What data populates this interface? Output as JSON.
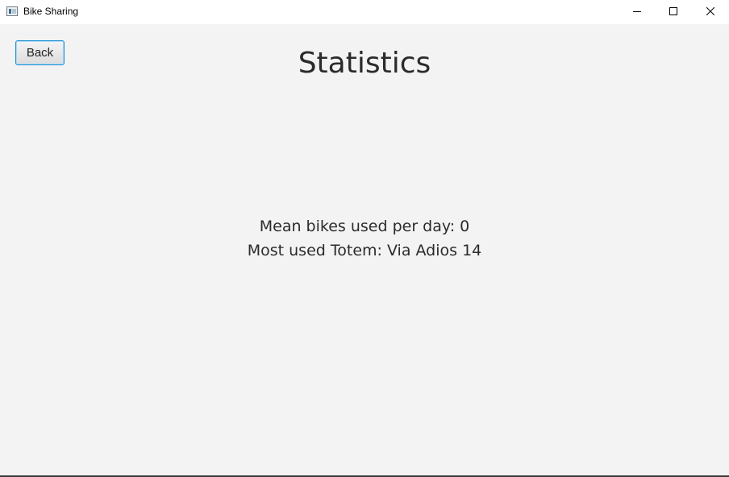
{
  "window": {
    "title": "Bike Sharing",
    "controls": [
      "minimize-icon",
      "maximize-icon",
      "close-icon"
    ]
  },
  "toolbar": {
    "back_label": "Back"
  },
  "main": {
    "title": "Statistics",
    "mean_bikes_text": "Mean bikes used per day: 0",
    "most_used_totem_text": "Most used Totem: Via Adios 14"
  },
  "colors": {
    "background": "#f3f3f3",
    "titlebar": "#ffffff",
    "text": "#2b2b2b",
    "button_focus_border": "#1e90d4"
  }
}
